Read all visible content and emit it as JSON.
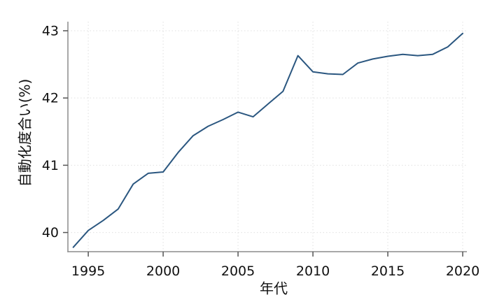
{
  "chart_data": {
    "type": "line",
    "title": "",
    "xlabel": "年代",
    "ylabel": "自動化度合い(%)",
    "x": [
      1994,
      1995,
      1996,
      1997,
      1998,
      1999,
      2000,
      2001,
      2002,
      2003,
      2004,
      2005,
      2006,
      2007,
      2008,
      2009,
      2010,
      2011,
      2012,
      2013,
      2014,
      2015,
      2016,
      2017,
      2018,
      2019,
      2020
    ],
    "values": [
      39.78,
      40.03,
      40.18,
      40.35,
      40.72,
      40.88,
      40.9,
      41.19,
      41.44,
      41.58,
      41.68,
      41.79,
      41.72,
      41.91,
      42.1,
      42.63,
      42.39,
      42.36,
      42.35,
      42.52,
      42.58,
      42.62,
      42.65,
      42.63,
      42.65,
      42.76,
      42.96
    ],
    "x_ticks": [
      "1995",
      "2000",
      "2005",
      "2010",
      "2015",
      "2020"
    ],
    "x_tick_values": [
      1995,
      2000,
      2005,
      2010,
      2015,
      2020
    ],
    "y_ticks": [
      "40",
      "41",
      "42",
      "43"
    ],
    "y_tick_values": [
      40,
      41,
      42,
      43
    ],
    "xlim": [
      1993.64,
      2020.28
    ],
    "ylim": [
      39.715,
      43.135
    ],
    "grid": "dotted-both",
    "legend": "none",
    "colors": {
      "line": "#2b5780",
      "spine": "#8c8c8c",
      "tick": "#555555",
      "grid": "#e0e0e0",
      "text": "#111111",
      "background": "#ffffff"
    }
  }
}
